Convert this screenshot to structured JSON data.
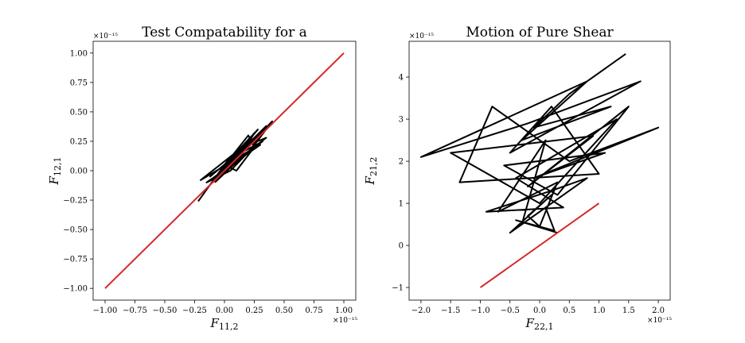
{
  "chart_data": [
    {
      "type": "line",
      "title": "Test Compatability for a",
      "xlabel_main": "F",
      "xlabel_sub": "11,2",
      "ylabel_main": "F",
      "ylabel_sub": "12,1",
      "x_offset": "×10⁻¹⁵",
      "y_offset": "×10⁻¹⁵",
      "xlim": [
        -1.1,
        1.1
      ],
      "ylim": [
        -1.1,
        1.1
      ],
      "x_ticks": [
        -1.0,
        -0.75,
        -0.5,
        -0.25,
        0.0,
        0.25,
        0.5,
        0.75,
        1.0
      ],
      "x_tick_labels": [
        "−1.00",
        "−0.75",
        "−0.50",
        "−0.25",
        "0.00",
        "0.25",
        "0.50",
        "0.75",
        "1.00"
      ],
      "y_ticks": [
        -1.0,
        -0.75,
        -0.5,
        -0.25,
        0.0,
        0.25,
        0.5,
        0.75,
        1.0
      ],
      "y_tick_labels": [
        "−1.00",
        "−0.75",
        "−0.50",
        "−0.25",
        "0.00",
        "0.25",
        "0.50",
        "0.75",
        "1.00"
      ],
      "grid": false,
      "series": [
        {
          "color": "#000000",
          "x": [
            -0.22,
            0.05,
            -0.1,
            0.25,
            0.2,
            -0.05,
            0.4,
            0.1,
            -0.2,
            0.15,
            0.35,
            -0.08,
            0.22,
            0.05,
            -0.15,
            0.3,
            0.0,
            0.28,
            -0.05,
            0.4,
            0.2,
            -0.1,
            0.18,
            0.25,
            -0.02,
            0.12,
            0.32,
            0.08,
            -0.12,
            0.15,
            0.3,
            0.0,
            0.1,
            0.25,
            -0.05,
            0.2,
            0.35,
            0.05,
            0.15,
            -0.08
          ],
          "y": [
            -0.26,
            0.12,
            -0.1,
            0.2,
            0.3,
            -0.02,
            0.4,
            0.1,
            -0.08,
            0.2,
            0.28,
            -0.05,
            0.18,
            0.0,
            -0.1,
            0.22,
            0.05,
            0.35,
            -0.05,
            0.42,
            0.15,
            -0.08,
            0.2,
            0.32,
            0.0,
            0.1,
            0.25,
            0.12,
            -0.05,
            0.18,
            0.3,
            0.05,
            0.0,
            0.2,
            -0.02,
            0.15,
            0.38,
            0.08,
            0.12,
            -0.1
          ]
        },
        {
          "color": "#d62728",
          "x": [
            -1.0,
            1.0
          ],
          "y": [
            -1.0,
            1.0
          ]
        }
      ]
    },
    {
      "type": "line",
      "title": "Motion of Pure Shear",
      "xlabel_main": "F",
      "xlabel_sub": "22,1",
      "ylabel_main": "F",
      "ylabel_sub": "21,2",
      "x_offset": "×10⁻¹⁵",
      "y_offset": "×10⁻¹⁵",
      "xlim": [
        -2.2,
        2.2
      ],
      "ylim": [
        -1.3,
        4.85
      ],
      "x_ticks": [
        -2.0,
        -1.5,
        -1.0,
        -0.5,
        0.0,
        0.5,
        1.0,
        1.5,
        2.0
      ],
      "x_tick_labels": [
        "−2.0",
        "−1.5",
        "−1.0",
        "−0.5",
        "0.0",
        "0.5",
        "1.0",
        "1.5",
        "2.0"
      ],
      "y_ticks": [
        -1,
        0,
        1,
        2,
        3,
        4
      ],
      "y_tick_labels": [
        "−1",
        "0",
        "1",
        "2",
        "3",
        "4"
      ],
      "grid": false,
      "series": [
        {
          "color": "#000000",
          "x": [
            1.45,
            0.5,
            -0.1,
            1.2,
            -0.3,
            0.8,
            -2.0,
            -0.2,
            1.7,
            -0.5,
            0.2,
            1.0,
            -1.35,
            -0.8,
            0.5,
            2.0,
            -0.1,
            1.1,
            -0.6,
            0.3,
            1.5,
            -0.2,
            0.9,
            -1.5,
            0.0,
            1.3,
            -0.4,
            0.4,
            -0.9,
            0.2,
            0.8,
            -0.3,
            0.1,
            -0.7,
            0.3,
            0.0,
            -0.2,
            0.2,
            -0.5,
            0.1,
            0.25,
            -0.4,
            0.3
          ],
          "y": [
            4.55,
            3.6,
            2.8,
            3.3,
            2.5,
            3.9,
            2.1,
            2.9,
            3.9,
            2.2,
            3.3,
            1.7,
            1.5,
            3.3,
            2.0,
            2.8,
            1.6,
            2.2,
            1.9,
            1.2,
            3.3,
            1.4,
            2.6,
            2.2,
            1.0,
            3.0,
            1.6,
            0.9,
            0.8,
            1.3,
            1.6,
            0.5,
            2.5,
            0.8,
            1.5,
            0.45,
            0.7,
            1.2,
            0.3,
            0.9,
            0.35,
            0.6,
            0.3
          ]
        },
        {
          "color": "#d62728",
          "x": [
            -1.0,
            1.0
          ],
          "y": [
            -1.0,
            1.0
          ]
        }
      ]
    }
  ]
}
